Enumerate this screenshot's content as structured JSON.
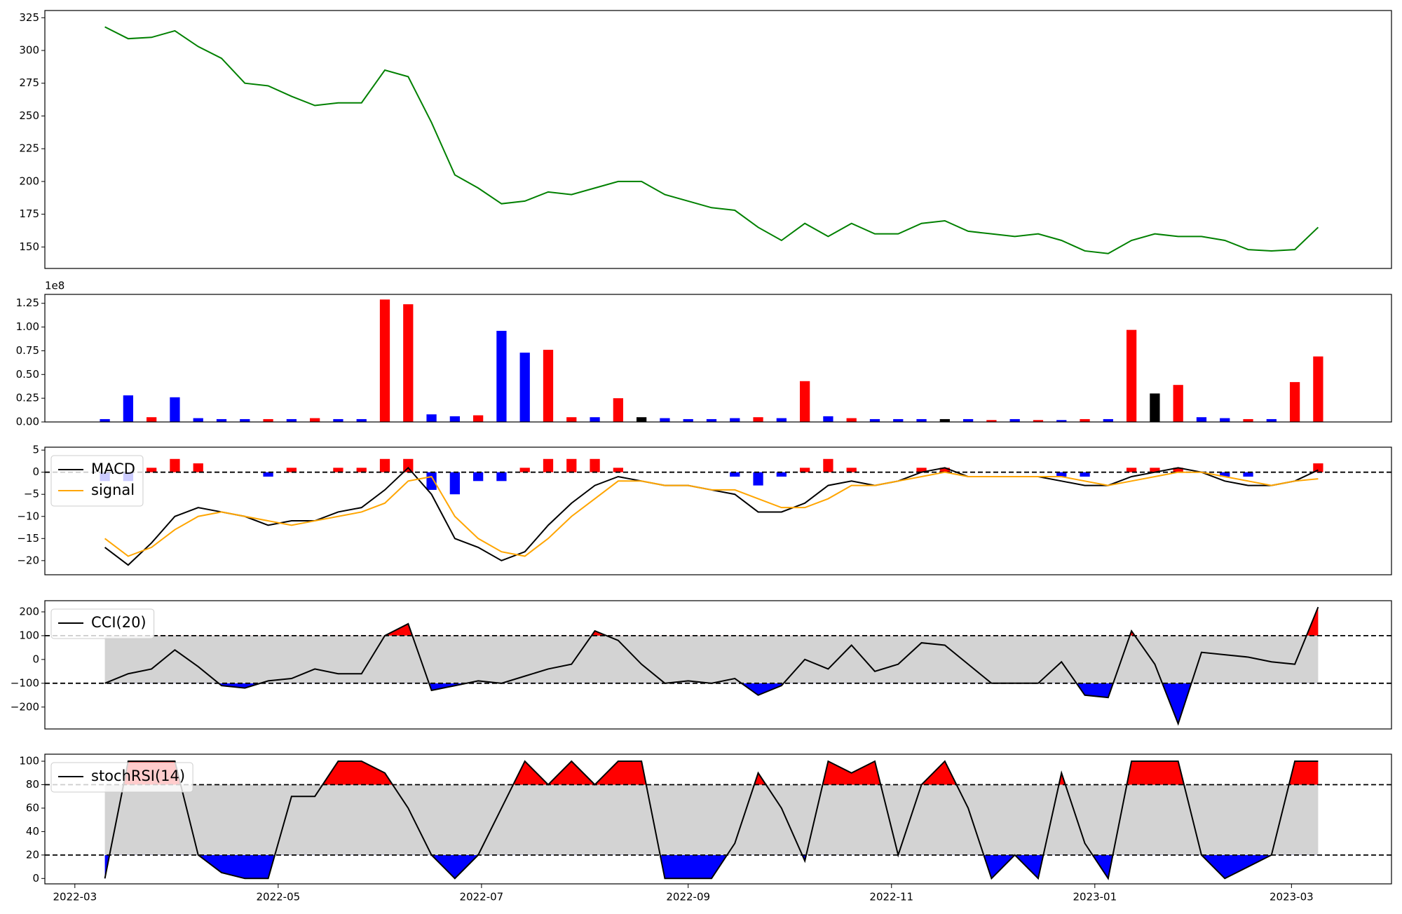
{
  "chart_data": [
    {
      "type": "line",
      "color": "green",
      "x": [
        "2022-03-10",
        "2022-03-17",
        "2022-03-24",
        "2022-03-31",
        "2022-04-07",
        "2022-04-14",
        "2022-04-21",
        "2022-04-28",
        "2022-05-05",
        "2022-05-12",
        "2022-05-19",
        "2022-05-26",
        "2022-06-02",
        "2022-06-09",
        "2022-06-16",
        "2022-06-23",
        "2022-06-30",
        "2022-07-07",
        "2022-07-14",
        "2022-07-21",
        "2022-07-28",
        "2022-08-04",
        "2022-08-11",
        "2022-08-18",
        "2022-08-25",
        "2022-09-01",
        "2022-09-08",
        "2022-09-15",
        "2022-09-22",
        "2022-09-29",
        "2022-10-06",
        "2022-10-13",
        "2022-10-20",
        "2022-10-27",
        "2022-11-03",
        "2022-11-10",
        "2022-11-17",
        "2022-11-24",
        "2022-12-01",
        "2022-12-08",
        "2022-12-15",
        "2022-12-22",
        "2022-12-29",
        "2023-01-05",
        "2023-01-12",
        "2023-01-19",
        "2023-01-26",
        "2023-02-02",
        "2023-02-09",
        "2023-02-16",
        "2023-02-23",
        "2023-03-02",
        "2023-03-09"
      ],
      "values": [
        318,
        309,
        310,
        315,
        303,
        294,
        275,
        273,
        265,
        258,
        260,
        260,
        285,
        280,
        245,
        205,
        195,
        183,
        185,
        192,
        190,
        195,
        200,
        200,
        190,
        185,
        180,
        178,
        165,
        155,
        168,
        158,
        168,
        160,
        160,
        168,
        170,
        162,
        160,
        158,
        160,
        155,
        147,
        145,
        155,
        160,
        158,
        158,
        155,
        148,
        147,
        148,
        165
      ],
      "xlim": [
        "2022-02-20",
        "2023-03-31"
      ],
      "ylim": [
        133.6,
        330.5
      ],
      "yticks": [
        150,
        175,
        200,
        225,
        250,
        275,
        300,
        325
      ]
    },
    {
      "type": "bar",
      "offset_text": "1e8",
      "x": [
        "2022-03-10",
        "2022-03-17",
        "2022-03-24",
        "2022-03-31",
        "2022-04-07",
        "2022-04-14",
        "2022-04-21",
        "2022-04-28",
        "2022-05-05",
        "2022-05-12",
        "2022-05-19",
        "2022-05-26",
        "2022-06-02",
        "2022-06-09",
        "2022-06-16",
        "2022-06-23",
        "2022-06-30",
        "2022-07-07",
        "2022-07-14",
        "2022-07-21",
        "2022-07-28",
        "2022-08-04",
        "2022-08-11",
        "2022-08-18",
        "2022-08-25",
        "2022-09-01",
        "2022-09-08",
        "2022-09-15",
        "2022-09-22",
        "2022-09-29",
        "2022-10-06",
        "2022-10-13",
        "2022-10-20",
        "2022-10-27",
        "2022-11-03",
        "2022-11-10",
        "2022-11-17",
        "2022-11-24",
        "2022-12-01",
        "2022-12-08",
        "2022-12-15",
        "2022-12-22",
        "2022-12-29",
        "2023-01-05",
        "2023-01-12",
        "2023-01-19",
        "2023-01-26",
        "2023-02-02",
        "2023-02-09",
        "2023-02-16",
        "2023-02-23",
        "2023-03-02",
        "2023-03-09"
      ],
      "values": [
        0.03,
        0.28,
        0.05,
        0.26,
        0.04,
        0.03,
        0.03,
        0.03,
        0.03,
        0.04,
        0.03,
        0.03,
        1.29,
        1.24,
        0.08,
        0.06,
        0.07,
        0.96,
        0.73,
        0.76,
        0.05,
        0.05,
        0.25,
        0.05,
        0.04,
        0.03,
        0.03,
        0.04,
        0.05,
        0.04,
        0.43,
        0.06,
        0.04,
        0.03,
        0.03,
        0.03,
        0.03,
        0.03,
        0.02,
        0.03,
        0.02,
        0.02,
        0.03,
        0.03,
        0.97,
        0.3,
        0.39,
        0.05,
        0.04,
        0.03,
        0.03,
        0.42,
        0.69
      ],
      "colors": [
        "blue",
        "blue",
        "red",
        "blue",
        "blue",
        "blue",
        "blue",
        "red",
        "blue",
        "red",
        "blue",
        "blue",
        "red",
        "red",
        "blue",
        "blue",
        "red",
        "blue",
        "blue",
        "red",
        "red",
        "blue",
        "red",
        "black",
        "blue",
        "blue",
        "blue",
        "blue",
        "red",
        "blue",
        "red",
        "blue",
        "red",
        "blue",
        "blue",
        "blue",
        "black",
        "blue",
        "red",
        "blue",
        "red",
        "blue",
        "red",
        "blue",
        "red",
        "black",
        "red",
        "blue",
        "blue",
        "red",
        "blue",
        "red",
        "red"
      ],
      "xlim": [
        "2022-02-20",
        "2023-03-31"
      ],
      "ylim": [
        0,
        1.344
      ],
      "yticks": [
        {
          "value": 0,
          "label": "0.00"
        },
        {
          "value": 0.25,
          "label": "0.25"
        },
        {
          "value": 0.5,
          "label": "0.50"
        },
        {
          "value": 0.75,
          "label": "0.75"
        },
        {
          "value": 1,
          "label": "1.00"
        },
        {
          "value": 1.25,
          "label": "1.25"
        }
      ]
    },
    {
      "type": "macd",
      "legend": "upper left",
      "hlines": [
        0
      ],
      "histogram_colors": [
        "red",
        "blue"
      ],
      "x": [
        "2022-03-10",
        "2022-03-17",
        "2022-03-24",
        "2022-03-31",
        "2022-04-07",
        "2022-04-14",
        "2022-04-21",
        "2022-04-28",
        "2022-05-05",
        "2022-05-12",
        "2022-05-19",
        "2022-05-26",
        "2022-06-02",
        "2022-06-09",
        "2022-06-16",
        "2022-06-23",
        "2022-06-30",
        "2022-07-07",
        "2022-07-14",
        "2022-07-21",
        "2022-07-28",
        "2022-08-04",
        "2022-08-11",
        "2022-08-18",
        "2022-08-25",
        "2022-09-01",
        "2022-09-08",
        "2022-09-15",
        "2022-09-22",
        "2022-09-29",
        "2022-10-06",
        "2022-10-13",
        "2022-10-20",
        "2022-10-27",
        "2022-11-03",
        "2022-11-10",
        "2022-11-17",
        "2022-11-24",
        "2022-12-01",
        "2022-12-08",
        "2022-12-15",
        "2022-12-22",
        "2022-12-29",
        "2023-01-05",
        "2023-01-12",
        "2023-01-19",
        "2023-01-26",
        "2023-02-02",
        "2023-02-09",
        "2023-02-16",
        "2023-02-23",
        "2023-03-02",
        "2023-03-09"
      ],
      "series": [
        {
          "name": "MACD",
          "color": "black",
          "values": [
            -17,
            -21,
            -16,
            -10,
            -8,
            -9,
            -10,
            -12,
            -11,
            -11,
            -9,
            -8,
            -4,
            1,
            -5,
            -15,
            -17,
            -20,
            -18,
            -12,
            -7,
            -3,
            -1,
            -2,
            -3,
            -3,
            -4,
            -5,
            -9,
            -9,
            -7,
            -3,
            -2,
            -3,
            -2,
            0,
            1,
            -1,
            -1,
            -1,
            -1,
            -2,
            -3,
            -3,
            -1,
            0,
            1,
            0,
            -2,
            -3,
            -3,
            -2,
            0.5
          ]
        },
        {
          "name": "signal",
          "color": "orange",
          "values": [
            -15,
            -19,
            -17,
            -13,
            -10,
            -9,
            -10,
            -11,
            -12,
            -11,
            -10,
            -9,
            -7,
            -2,
            -1,
            -10,
            -15,
            -18,
            -19,
            -15,
            -10,
            -6,
            -2,
            -2,
            -3,
            -3,
            -4,
            -4,
            -6,
            -8,
            -8,
            -6,
            -3,
            -3,
            -2,
            -1,
            0,
            -1,
            -1,
            -1,
            -1,
            -1,
            -2,
            -3,
            -2,
            -1,
            0,
            0,
            -1,
            -2,
            -3,
            -2,
            -1.5
          ]
        }
      ],
      "histogram": [
        -2,
        -2,
        1,
        3,
        2,
        0,
        0,
        -1,
        1,
        0,
        1,
        1,
        3,
        3,
        -4,
        -5,
        -2,
        -2,
        1,
        3,
        3,
        3,
        1,
        0,
        0,
        0,
        0,
        -1,
        -3,
        -1,
        1,
        3,
        1,
        0,
        0,
        1,
        1,
        0,
        0,
        0,
        0,
        -1,
        -1,
        0,
        1,
        1,
        1,
        0,
        -1,
        -1,
        0,
        0,
        2
      ],
      "xlim": [
        "2022-02-20",
        "2023-03-31"
      ],
      "ylim": [
        -23.2,
        5.66
      ],
      "yticks": [
        {
          "value": -20,
          "label": "−20"
        },
        {
          "value": -15,
          "label": "−15"
        },
        {
          "value": -10,
          "label": "−10"
        },
        {
          "value": -5,
          "label": "−5"
        },
        0,
        5
      ]
    },
    {
      "type": "band",
      "legend": "upper left",
      "hlines": [
        100,
        -100
      ],
      "band_color": "lightgray",
      "upper_color": "red",
      "lower_color": "blue",
      "x": [
        "2022-03-10",
        "2022-03-17",
        "2022-03-24",
        "2022-03-31",
        "2022-04-07",
        "2022-04-14",
        "2022-04-21",
        "2022-04-28",
        "2022-05-05",
        "2022-05-12",
        "2022-05-19",
        "2022-05-26",
        "2022-06-02",
        "2022-06-09",
        "2022-06-16",
        "2022-06-23",
        "2022-06-30",
        "2022-07-07",
        "2022-07-14",
        "2022-07-21",
        "2022-07-28",
        "2022-08-04",
        "2022-08-11",
        "2022-08-18",
        "2022-08-25",
        "2022-09-01",
        "2022-09-08",
        "2022-09-15",
        "2022-09-22",
        "2022-09-29",
        "2022-10-06",
        "2022-10-13",
        "2022-10-20",
        "2022-10-27",
        "2022-11-03",
        "2022-11-10",
        "2022-11-17",
        "2022-11-24",
        "2022-12-01",
        "2022-12-08",
        "2022-12-15",
        "2022-12-22",
        "2022-12-29",
        "2023-01-05",
        "2023-01-12",
        "2023-01-19",
        "2023-01-26",
        "2023-02-02",
        "2023-02-09",
        "2023-02-16",
        "2023-02-23",
        "2023-03-02",
        "2023-03-09"
      ],
      "series": [
        {
          "name": "CCI(20)",
          "color": "black",
          "values": [
            -100,
            -60,
            -40,
            40,
            -30,
            -110,
            -120,
            -90,
            -80,
            -40,
            -60,
            -60,
            100,
            150,
            -130,
            -110,
            -90,
            -100,
            -70,
            -40,
            -20,
            120,
            80,
            -20,
            -100,
            -90,
            -100,
            -80,
            -150,
            -110,
            0,
            -40,
            60,
            -50,
            -20,
            70,
            60,
            -20,
            -100,
            -100,
            -100,
            -10,
            -150,
            -160,
            120,
            -20,
            -270,
            30,
            20,
            10,
            -10,
            -20,
            220
          ]
        }
      ],
      "xlim": [
        "2022-02-20",
        "2023-03-31"
      ],
      "ylim": [
        -292,
        247
      ],
      "yticks": [
        {
          "value": -200,
          "label": "−200"
        },
        {
          "value": -100,
          "label": "−100"
        },
        0,
        100,
        200
      ]
    },
    {
      "type": "band",
      "legend": "upper left",
      "hlines": [
        80,
        20
      ],
      "band_color": "lightgray",
      "upper_color": "red",
      "lower_color": "blue",
      "x": [
        "2022-03-10",
        "2022-03-17",
        "2022-03-24",
        "2022-03-31",
        "2022-04-07",
        "2022-04-14",
        "2022-04-21",
        "2022-04-28",
        "2022-05-05",
        "2022-05-12",
        "2022-05-19",
        "2022-05-26",
        "2022-06-02",
        "2022-06-09",
        "2022-06-16",
        "2022-06-23",
        "2022-06-30",
        "2022-07-07",
        "2022-07-14",
        "2022-07-21",
        "2022-07-28",
        "2022-08-04",
        "2022-08-11",
        "2022-08-18",
        "2022-08-25",
        "2022-09-01",
        "2022-09-08",
        "2022-09-15",
        "2022-09-22",
        "2022-09-29",
        "2022-10-06",
        "2022-10-13",
        "2022-10-20",
        "2022-10-27",
        "2022-11-03",
        "2022-11-10",
        "2022-11-17",
        "2022-11-24",
        "2022-12-01",
        "2022-12-08",
        "2022-12-15",
        "2022-12-22",
        "2022-12-29",
        "2023-01-05",
        "2023-01-12",
        "2023-01-19",
        "2023-01-26",
        "2023-02-02",
        "2023-02-09",
        "2023-02-16",
        "2023-02-23",
        "2023-03-02",
        "2023-03-09"
      ],
      "series": [
        {
          "name": "stochRSI(14)",
          "color": "black",
          "values": [
            0,
            100,
            100,
            100,
            20,
            5,
            0,
            0,
            70,
            70,
            100,
            100,
            90,
            60,
            20,
            0,
            20,
            60,
            100,
            80,
            100,
            80,
            100,
            100,
            0,
            0,
            0,
            30,
            90,
            60,
            15,
            100,
            90,
            100,
            20,
            80,
            100,
            60,
            0,
            20,
            0,
            90,
            30,
            0,
            100,
            100,
            100,
            20,
            0,
            10,
            20,
            100,
            100
          ]
        }
      ],
      "xlim": [
        "2022-02-20",
        "2023-03-31"
      ],
      "ylim": [
        -4.6,
        106
      ],
      "yticks": [
        0,
        20,
        40,
        60,
        80,
        100
      ],
      "xticks": [
        {
          "value": "2022-03-01",
          "label": "2022-03"
        },
        {
          "value": "2022-05-01",
          "label": "2022-05"
        },
        {
          "value": "2022-07-01",
          "label": "2022-07"
        },
        {
          "value": "2022-09-01",
          "label": "2022-09"
        },
        {
          "value": "2022-11-01",
          "label": "2022-11"
        },
        {
          "value": "2023-01-01",
          "label": "2023-01"
        },
        {
          "value": "2023-03-01",
          "label": "2023-03"
        }
      ]
    }
  ]
}
